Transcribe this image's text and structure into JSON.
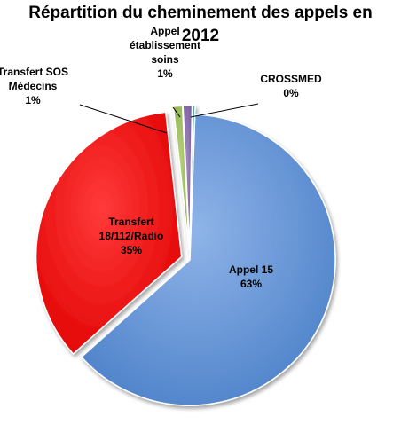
{
  "chart_data": {
    "type": "pie",
    "title_lines": [
      "Répartition du cheminement des appels en",
      "2012"
    ],
    "legend": "none",
    "slices": [
      {
        "key": "appel15",
        "label_lines": [
          "Appel 15"
        ],
        "percent_label": "63%",
        "value": 63,
        "color": "#5b8fd5"
      },
      {
        "key": "transfert",
        "label_lines": [
          "Transfert",
          "18/112/Radio"
        ],
        "percent_label": "35%",
        "value": 35,
        "color": "#ff0000"
      },
      {
        "key": "sos",
        "label_lines": [
          "Transfert SOS",
          "Médecins"
        ],
        "percent_label": "1%",
        "value": 1,
        "color": "#9bbb59"
      },
      {
        "key": "etab",
        "label_lines": [
          "Appel",
          "établissement",
          "soins"
        ],
        "percent_label": "1%",
        "value": 1,
        "color": "#8064a2"
      },
      {
        "key": "crossmed",
        "label_lines": [
          "CROSSMED"
        ],
        "percent_label": "0%",
        "value": 0.3,
        "color": "#4bacc6"
      }
    ]
  }
}
